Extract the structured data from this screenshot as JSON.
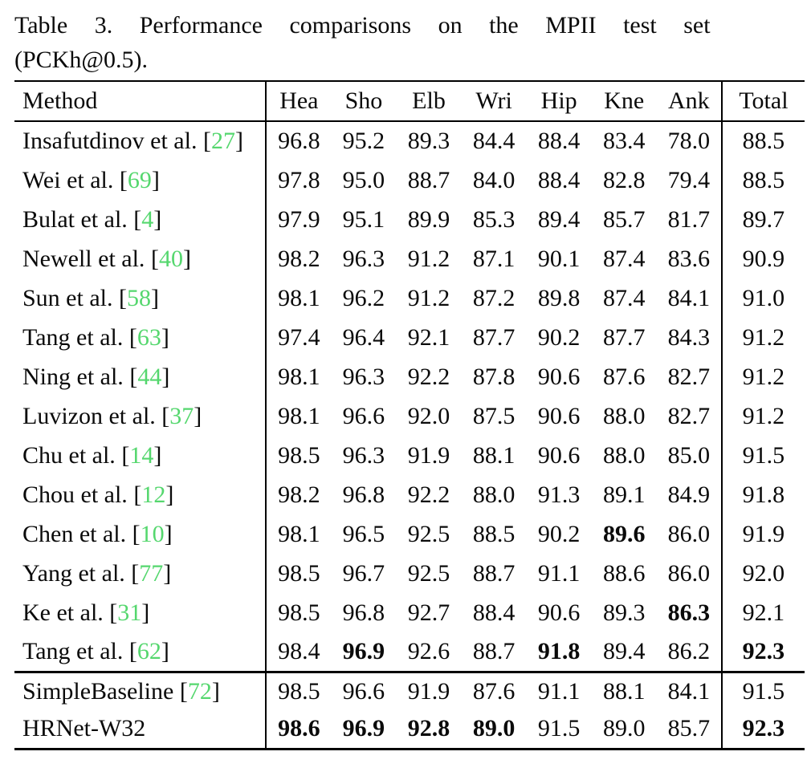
{
  "caption": {
    "full": "Table 3. Performance comparisons on the MPII test set (PCKh@0.5).",
    "line1": "Table 3. Performance comparisons on the MPII test set",
    "line2": "(PCKh@0.5)."
  },
  "colors": {
    "citation_green": "#55d76e",
    "text": "#0a0a0a",
    "background": "#ffffff"
  },
  "chart_data": {
    "type": "table",
    "title": "Table 3. Performance comparisons on the MPII test set (PCKh@0.5).",
    "columns": [
      "Method",
      "Hea",
      "Sho",
      "Elb",
      "Wri",
      "Hip",
      "Kne",
      "Ank",
      "Total"
    ],
    "group2_start": 14,
    "rows": [
      {
        "name": "Insafutdinov et al.",
        "cite": "27",
        "values": [
          "96.8",
          "95.2",
          "89.3",
          "84.4",
          "88.4",
          "83.4",
          "78.0",
          "88.5"
        ],
        "bold": []
      },
      {
        "name": "Wei et al.",
        "cite": "69",
        "values": [
          "97.8",
          "95.0",
          "88.7",
          "84.0",
          "88.4",
          "82.8",
          "79.4",
          "88.5"
        ],
        "bold": []
      },
      {
        "name": "Bulat et al.",
        "cite": "4",
        "values": [
          "97.9",
          "95.1",
          "89.9",
          "85.3",
          "89.4",
          "85.7",
          "81.7",
          "89.7"
        ],
        "bold": []
      },
      {
        "name": "Newell et al.",
        "cite": "40",
        "values": [
          "98.2",
          "96.3",
          "91.2",
          "87.1",
          "90.1",
          "87.4",
          "83.6",
          "90.9"
        ],
        "bold": []
      },
      {
        "name": "Sun et al.",
        "cite": "58",
        "values": [
          "98.1",
          "96.2",
          "91.2",
          "87.2",
          "89.8",
          "87.4",
          "84.1",
          "91.0"
        ],
        "bold": []
      },
      {
        "name": "Tang et al.",
        "cite": "63",
        "values": [
          "97.4",
          "96.4",
          "92.1",
          "87.7",
          "90.2",
          "87.7",
          "84.3",
          "91.2"
        ],
        "bold": []
      },
      {
        "name": "Ning et al.",
        "cite": "44",
        "values": [
          "98.1",
          "96.3",
          "92.2",
          "87.8",
          "90.6",
          "87.6",
          "82.7",
          "91.2"
        ],
        "bold": []
      },
      {
        "name": "Luvizon et al.",
        "cite": "37",
        "values": [
          "98.1",
          "96.6",
          "92.0",
          "87.5",
          "90.6",
          "88.0",
          "82.7",
          "91.2"
        ],
        "bold": []
      },
      {
        "name": "Chu et al.",
        "cite": "14",
        "values": [
          "98.5",
          "96.3",
          "91.9",
          "88.1",
          "90.6",
          "88.0",
          "85.0",
          "91.5"
        ],
        "bold": []
      },
      {
        "name": "Chou et al.",
        "cite": "12",
        "values": [
          "98.2",
          "96.8",
          "92.2",
          "88.0",
          "91.3",
          "89.1",
          "84.9",
          "91.8"
        ],
        "bold": []
      },
      {
        "name": "Chen et al.",
        "cite": "10",
        "values": [
          "98.1",
          "96.5",
          "92.5",
          "88.5",
          "90.2",
          "89.6",
          "86.0",
          "91.9"
        ],
        "bold": [
          5
        ]
      },
      {
        "name": "Yang et al.",
        "cite": "77",
        "values": [
          "98.5",
          "96.7",
          "92.5",
          "88.7",
          "91.1",
          "88.6",
          "86.0",
          "92.0"
        ],
        "bold": []
      },
      {
        "name": "Ke et al.",
        "cite": "31",
        "values": [
          "98.5",
          "96.8",
          "92.7",
          "88.4",
          "90.6",
          "89.3",
          "86.3",
          "92.1"
        ],
        "bold": [
          6
        ]
      },
      {
        "name": "Tang et al.",
        "cite": "62",
        "values": [
          "98.4",
          "96.9",
          "92.6",
          "88.7",
          "91.8",
          "89.4",
          "86.2",
          "92.3"
        ],
        "bold": [
          1,
          4,
          7
        ]
      },
      {
        "name": "SimpleBaseline",
        "cite": "72",
        "values": [
          "98.5",
          "96.6",
          "91.9",
          "87.6",
          "91.1",
          "88.1",
          "84.1",
          "91.5"
        ],
        "bold": []
      },
      {
        "name": "HRNet-W32",
        "cite": null,
        "values": [
          "98.6",
          "96.9",
          "92.8",
          "89.0",
          "91.5",
          "89.0",
          "85.7",
          "92.3"
        ],
        "bold": [
          0,
          1,
          2,
          3,
          7
        ]
      }
    ]
  }
}
